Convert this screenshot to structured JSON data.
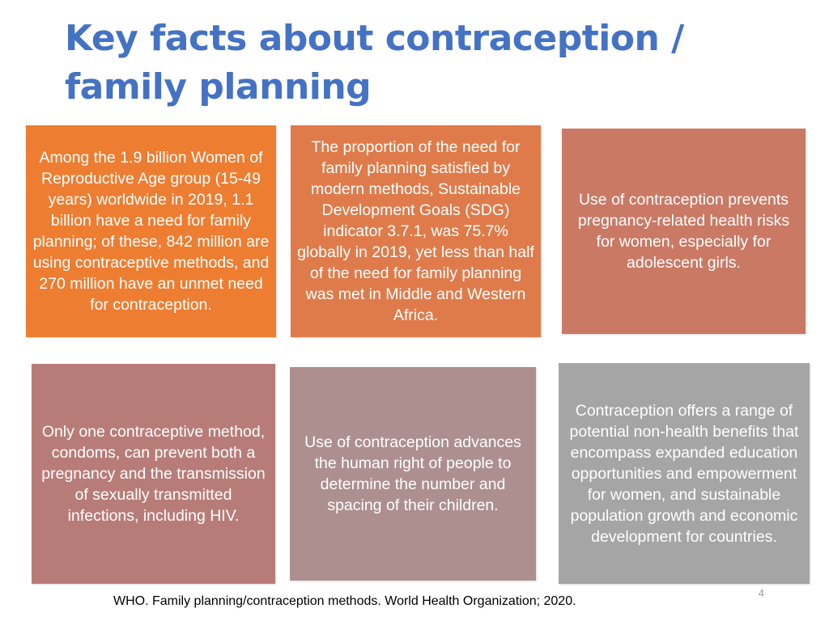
{
  "slide": {
    "title_line1": "Key facts about contraception /",
    "title_line2": "family planning",
    "page_number": "4",
    "citation": "WHO. Family planning/contraception methods. World Health Organization; 2020."
  },
  "boxes": [
    {
      "text": "Among the 1.9 billion Women of Reproductive Age group (15-49 years) worldwide in 2019, 1.1 billion have a need for family planning; of these, 842 million are using contraceptive methods, and 270 million have an unmet need for contraception.",
      "color": "#ed7d31"
    },
    {
      "text": "The proportion of the need for family planning satisfied by modern methods, Sustainable Development Goals (SDG) indicator 3.7.1, was 75.7% globally in 2019, yet less than half of the need for family planning was met in Middle and Western Africa.",
      "color": "#df7b4b"
    },
    {
      "text": "Use of contraception prevents pregnancy-related health risks for women, especially for adolescent girls.",
      "color": "#ca7965"
    },
    {
      "text": "Only one contraceptive method, condoms, can prevent both a pregnancy and the transmission of sexually transmitted infections, including HIV.",
      "color": "#b87c78"
    },
    {
      "text": "Use of contraception advances the human right of people to determine the number and spacing of their children.",
      "color": "#ad8f90"
    },
    {
      "text": "Contraception offers a range of potential non-health benefits that encompass expanded education opportunities and empowerment for women, and sustainable population growth and economic development for countries.",
      "color": "#a5a5a5"
    }
  ]
}
